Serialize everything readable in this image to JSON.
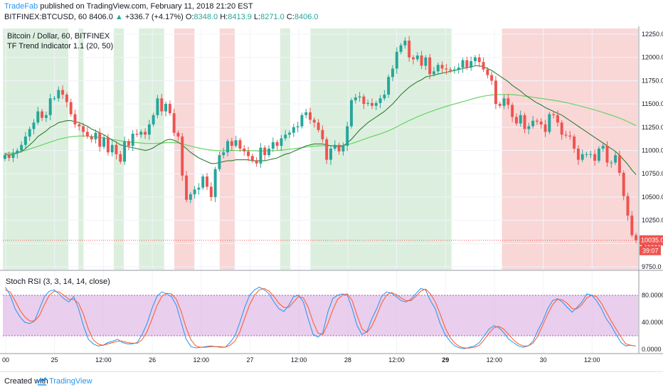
{
  "header": {
    "author": "TradeFab",
    "published": "published on TradingView.com, February 11, 2018 21:20 EST",
    "symbol": "BITFINEX:BTCUSD, 60",
    "last": "8406.0",
    "change_arrow": "▲",
    "change": "+336.7 (+4.17%)",
    "o_label": "O:",
    "o_val": "8348.0",
    "h_label": "H:",
    "h_val": "8413.9",
    "l_label": "L:",
    "l_val": "8271.0",
    "c_label": "C:",
    "c_val": "8406.0"
  },
  "legend": {
    "line1": "Bitcoin / Dollar, 60, BITFINEX",
    "line2": "TF Trend Indicator 1.1 (20, 50)",
    "stoch": "Stoch RSI (3, 3, 14, 14, close)"
  },
  "footer": {
    "created": "Created with",
    "brand": "TradingView"
  },
  "colors": {
    "up": "#26a69a",
    "down": "#ef5350",
    "bull_zone": "#d6ecd8",
    "bear_zone": "#f8d0d0",
    "fast_ma": "#2e7d32",
    "slow_ma": "#66d466",
    "stoch_k": "#2196f3",
    "stoch_d": "#ff5722",
    "stoch_band": "#e1bee7"
  },
  "chart_data": [
    {
      "type": "candlestick",
      "title": "Bitcoin / Dollar, 60, BITFINEX",
      "indicator": "TF Trend Indicator 1.1 (20, 50)",
      "ylim": [
        9750,
        12250
      ],
      "y_ticks": [
        "9750.0",
        "10000.0",
        "10250.0",
        "10500.0",
        "10750.0",
        "11000.0",
        "11250.0",
        "11500.0",
        "11750.0",
        "12000.0",
        "12250.0"
      ],
      "x_ticks": [
        "00",
        "25",
        "12:00",
        "26",
        "12:00",
        "27",
        "12:00",
        "28",
        "12:00",
        "29",
        "12:00",
        "30",
        "12:00"
      ],
      "price_label": "10035.0",
      "countdown_label": "39:07",
      "trend_zones": [
        {
          "from": 0,
          "to": 13,
          "trend": "bull"
        },
        {
          "from": 15,
          "to": 16,
          "trend": "bull"
        },
        {
          "from": 22,
          "to": 24,
          "trend": "bull"
        },
        {
          "from": 27,
          "to": 32,
          "trend": "bull"
        },
        {
          "from": 34,
          "to": 38,
          "trend": "bear"
        },
        {
          "from": 43,
          "to": 46,
          "trend": "bear"
        },
        {
          "from": 55,
          "to": 57,
          "trend": "bull"
        },
        {
          "from": 61,
          "to": 89,
          "trend": "bull"
        },
        {
          "from": 99,
          "to": 126,
          "trend": "bear"
        }
      ],
      "candles_close": [
        10950,
        10920,
        10970,
        11000,
        11060,
        11150,
        11230,
        11300,
        11420,
        11350,
        11380,
        11560,
        11560,
        11650,
        11600,
        11520,
        11390,
        11280,
        11260,
        11200,
        11150,
        11120,
        11190,
        11040,
        11140,
        10980,
        11060,
        10960,
        10880,
        11100,
        11050,
        11180,
        11170,
        11200,
        11170,
        11280,
        11380,
        11560,
        11420,
        11500,
        11400,
        11190,
        11150,
        10730,
        10470,
        10530,
        10580,
        10600,
        10720,
        10610,
        10500,
        10800,
        10950,
        10980,
        11100,
        11050,
        11110,
        11020,
        10990,
        10940,
        10890,
        10860,
        11030,
        10950,
        11020,
        11090,
        11050,
        11130,
        11170,
        11190,
        11250,
        11260,
        11380,
        11410,
        11330,
        11300,
        11220,
        11120,
        10900,
        11020,
        11060,
        10990,
        11050,
        11260,
        11540,
        11570,
        11580,
        11500,
        11510,
        11480,
        11510,
        11560,
        11600,
        11790,
        11880,
        12060,
        12130,
        12180,
        12000,
        11980,
        12020,
        11910,
        12000,
        11820,
        11850,
        11920,
        11880,
        11870,
        11860,
        11870,
        11890,
        11970,
        11890,
        11960,
        12000,
        11950,
        11870,
        11810,
        11750,
        11500,
        11480,
        11560,
        11490,
        11360,
        11290,
        11380,
        11230,
        11260,
        11320,
        11310,
        11280,
        11200,
        11390,
        11380,
        11300,
        11170,
        11160,
        11150,
        11020,
        10900,
        10960,
        10960,
        10960,
        10890,
        11020,
        11050,
        10870,
        10870,
        10950,
        10760,
        10510,
        10300,
        10090,
        10035
      ],
      "fast_ma": [
        10960,
        10950,
        10960,
        10970,
        10990,
        11020,
        11060,
        11100,
        11150,
        11180,
        11210,
        11250,
        11270,
        11300,
        11310,
        11320,
        11320,
        11310,
        11300,
        11280,
        11260,
        11230,
        11210,
        11190,
        11170,
        11140,
        11110,
        11090,
        11060,
        11050,
        11040,
        11030,
        11020,
        11010,
        11000,
        11010,
        11030,
        11060,
        11080,
        11110,
        11120,
        11110,
        11090,
        11060,
        11020,
        10980,
        10950,
        10920,
        10900,
        10880,
        10860,
        10860,
        10870,
        10880,
        10890,
        10890,
        10900,
        10900,
        10900,
        10900,
        10890,
        10890,
        10890,
        10890,
        10900,
        10910,
        10920,
        10940,
        10960,
        10970,
        10990,
        11010,
        11030,
        11050,
        11060,
        11070,
        11070,
        11070,
        11060,
        11050,
        11050,
        11040,
        11050,
        11080,
        11120,
        11170,
        11220,
        11260,
        11300,
        11330,
        11360,
        11390,
        11420,
        11460,
        11500,
        11550,
        11600,
        11640,
        11680,
        11710,
        11740,
        11760,
        11790,
        11800,
        11810,
        11820,
        11830,
        11840,
        11850,
        11860,
        11870,
        11880,
        11890,
        11900,
        11910,
        11910,
        11900,
        11880,
        11860,
        11830,
        11800,
        11770,
        11740,
        11700,
        11670,
        11640,
        11600,
        11570,
        11540,
        11510,
        11490,
        11460,
        11440,
        11420,
        11400,
        11380,
        11350,
        11320,
        11290,
        11260,
        11230,
        11200,
        11170,
        11140,
        11110,
        11080,
        11050,
        11020,
        10990,
        10950,
        10900,
        10850,
        10790,
        10740
      ],
      "slow_ma": [
        10970,
        10970,
        10975,
        10980,
        10990,
        11000,
        11015,
        11030,
        11045,
        11060,
        11075,
        11090,
        11105,
        11120,
        11130,
        11140,
        11148,
        11152,
        11155,
        11156,
        11155,
        11150,
        11145,
        11140,
        11135,
        11128,
        11120,
        11112,
        11104,
        11098,
        11092,
        11088,
        11084,
        11080,
        11076,
        11075,
        11075,
        11078,
        11080,
        11083,
        11085,
        11084,
        11080,
        11072,
        11060,
        11048,
        11036,
        11026,
        11018,
        11010,
        11004,
        11000,
        10998,
        10998,
        10999,
        11000,
        11000,
        11000,
        11000,
        10999,
        10998,
        10996,
        10995,
        10995,
        10996,
        10998,
        11000,
        11004,
        11008,
        11013,
        11018,
        11024,
        11030,
        11037,
        11042,
        11046,
        11049,
        11051,
        11052,
        11052,
        11052,
        11052,
        11054,
        11062,
        11074,
        11088,
        11104,
        11120,
        11136,
        11150,
        11164,
        11178,
        11194,
        11212,
        11232,
        11254,
        11278,
        11300,
        11322,
        11342,
        11362,
        11380,
        11398,
        11414,
        11430,
        11446,
        11460,
        11474,
        11488,
        11500,
        11512,
        11525,
        11537,
        11550,
        11562,
        11574,
        11583,
        11590,
        11596,
        11600,
        11602,
        11602,
        11602,
        11600,
        11596,
        11590,
        11584,
        11578,
        11572,
        11566,
        11560,
        11553,
        11546,
        11540,
        11532,
        11524,
        11515,
        11505,
        11495,
        11484,
        11472,
        11460,
        11448,
        11435,
        11422,
        11408,
        11394,
        11380,
        11364,
        11348,
        11330,
        11310,
        11288,
        11265
      ]
    },
    {
      "type": "line",
      "title": "Stoch RSI (3, 3, 14, 14, close)",
      "ylim": [
        0,
        100
      ],
      "y_ticks": [
        "0.0000",
        "40.0000",
        "80.0000"
      ],
      "band": [
        20,
        80
      ],
      "series": [
        {
          "name": "K",
          "values": [
            92,
            80,
            60,
            48,
            40,
            38,
            42,
            60,
            78,
            86,
            88,
            82,
            75,
            70,
            78,
            60,
            35,
            15,
            8,
            5,
            6,
            10,
            12,
            15,
            10,
            8,
            8,
            10,
            22,
            38,
            60,
            78,
            85,
            82,
            78,
            65,
            40,
            15,
            4,
            2,
            3,
            4,
            5,
            4,
            3,
            3,
            10,
            20,
            40,
            62,
            80,
            88,
            92,
            88,
            82,
            70,
            60,
            56,
            65,
            78,
            80,
            70,
            45,
            22,
            18,
            25,
            55,
            75,
            80,
            82,
            80,
            60,
            35,
            22,
            26,
            45,
            60,
            78,
            85,
            83,
            78,
            72,
            70,
            74,
            82,
            90,
            88,
            72,
            60,
            38,
            22,
            12,
            5,
            2,
            1,
            3,
            5,
            10,
            20,
            30,
            35,
            32,
            25,
            15,
            10,
            5,
            3,
            5,
            12,
            28,
            42,
            60,
            72,
            75,
            70,
            62,
            55,
            62,
            70,
            82,
            80,
            72,
            60,
            45,
            35,
            22,
            10,
            5,
            6,
            5
          ]
        },
        {
          "name": "D",
          "values": [
            88,
            85,
            72,
            58,
            48,
            42,
            42,
            50,
            66,
            80,
            86,
            85,
            80,
            74,
            74,
            68,
            52,
            30,
            14,
            8,
            6,
            8,
            10,
            12,
            12,
            10,
            9,
            9,
            14,
            26,
            44,
            64,
            78,
            83,
            82,
            74,
            56,
            32,
            14,
            5,
            3,
            3,
            4,
            4,
            4,
            3,
            6,
            12,
            26,
            46,
            66,
            80,
            88,
            90,
            86,
            78,
            68,
            62,
            62,
            70,
            78,
            76,
            62,
            40,
            24,
            22,
            38,
            58,
            74,
            80,
            82,
            72,
            50,
            30,
            25,
            34,
            50,
            68,
            80,
            84,
            81,
            76,
            72,
            72,
            78,
            86,
            89,
            82,
            70,
            52,
            32,
            18,
            9,
            4,
            2,
            2,
            3,
            6,
            14,
            24,
            32,
            34,
            30,
            22,
            14,
            8,
            5,
            5,
            9,
            20,
            36,
            52,
            66,
            74,
            73,
            68,
            60,
            60,
            66,
            76,
            80,
            78,
            68,
            55,
            42,
            30,
            18,
            8,
            6,
            5
          ]
        }
      ]
    }
  ]
}
